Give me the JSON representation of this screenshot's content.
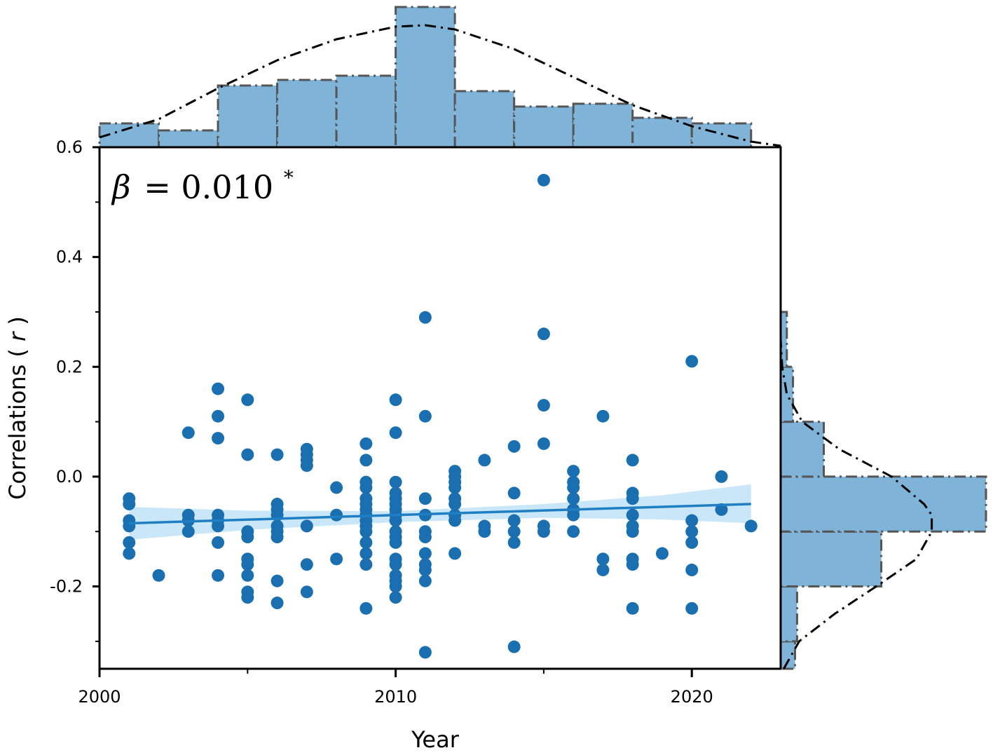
{
  "chart_data": {
    "type": "scatter",
    "xlabel": "Year",
    "ylabel_text": "Correlations (",
    "ylabel_italic": "r",
    "ylabel_close": ")",
    "annotation": {
      "beta_symbol": "β",
      "equals": "= ",
      "value": "0.010",
      "significance": "*"
    },
    "xlim": [
      2000,
      2023
    ],
    "ylim": [
      -0.35,
      0.6
    ],
    "xticks": [
      2000,
      2010,
      2020
    ],
    "xtick_labels": [
      "2000",
      "2010",
      "2020"
    ],
    "yticks": [
      -0.2,
      0.0,
      0.2,
      0.4,
      0.6
    ],
    "ytick_labels": [
      "-0.2",
      "0.0",
      "0.2",
      "0.4",
      "0.6"
    ],
    "grid": false,
    "colors": {
      "points": "#1a6fb0",
      "fit_line": "#1f7fc2",
      "confidence_band": "#bfe3f7",
      "histogram_fill": "#7fb3d8",
      "histogram_edge": "#555555",
      "density_curve": "#000000"
    },
    "points": [
      [
        2001,
        -0.04
      ],
      [
        2001,
        -0.05
      ],
      [
        2001,
        -0.08
      ],
      [
        2001,
        -0.09
      ],
      [
        2001,
        -0.12
      ],
      [
        2001,
        -0.14
      ],
      [
        2002,
        -0.18
      ],
      [
        2003,
        0.08
      ],
      [
        2003,
        -0.07
      ],
      [
        2003,
        -0.08
      ],
      [
        2003,
        -0.1
      ],
      [
        2004,
        0.16
      ],
      [
        2004,
        0.11
      ],
      [
        2004,
        0.07
      ],
      [
        2004,
        -0.07
      ],
      [
        2004,
        -0.08
      ],
      [
        2004,
        -0.09
      ],
      [
        2004,
        -0.12
      ],
      [
        2004,
        -0.18
      ],
      [
        2005,
        0.14
      ],
      [
        2005,
        0.04
      ],
      [
        2005,
        -0.1
      ],
      [
        2005,
        -0.11
      ],
      [
        2005,
        -0.15
      ],
      [
        2005,
        -0.16
      ],
      [
        2005,
        -0.18
      ],
      [
        2005,
        -0.21
      ],
      [
        2005,
        -0.22
      ],
      [
        2006,
        0.04
      ],
      [
        2006,
        -0.05
      ],
      [
        2006,
        -0.06
      ],
      [
        2006,
        -0.07
      ],
      [
        2006,
        -0.09
      ],
      [
        2006,
        -0.1
      ],
      [
        2006,
        -0.11
      ],
      [
        2006,
        -0.19
      ],
      [
        2006,
        -0.23
      ],
      [
        2007,
        0.05
      ],
      [
        2007,
        0.04
      ],
      [
        2007,
        0.03
      ],
      [
        2007,
        0.02
      ],
      [
        2007,
        -0.09
      ],
      [
        2007,
        -0.16
      ],
      [
        2007,
        -0.21
      ],
      [
        2008,
        -0.02
      ],
      [
        2008,
        -0.07
      ],
      [
        2008,
        -0.15
      ],
      [
        2009,
        0.06
      ],
      [
        2009,
        0.03
      ],
      [
        2009,
        -0.01
      ],
      [
        2009,
        -0.02
      ],
      [
        2009,
        -0.04
      ],
      [
        2009,
        -0.05
      ],
      [
        2009,
        -0.06
      ],
      [
        2009,
        -0.07
      ],
      [
        2009,
        -0.08
      ],
      [
        2009,
        -0.09
      ],
      [
        2009,
        -0.1
      ],
      [
        2009,
        -0.12
      ],
      [
        2009,
        -0.14
      ],
      [
        2009,
        -0.16
      ],
      [
        2009,
        -0.24
      ],
      [
        2010,
        0.14
      ],
      [
        2010,
        0.08
      ],
      [
        2010,
        -0.01
      ],
      [
        2010,
        -0.03
      ],
      [
        2010,
        -0.04
      ],
      [
        2010,
        -0.05
      ],
      [
        2010,
        -0.06
      ],
      [
        2010,
        -0.07
      ],
      [
        2010,
        -0.08
      ],
      [
        2010,
        -0.1
      ],
      [
        2010,
        -0.11
      ],
      [
        2010,
        -0.12
      ],
      [
        2010,
        -0.15
      ],
      [
        2010,
        -0.16
      ],
      [
        2010,
        -0.18
      ],
      [
        2010,
        -0.19
      ],
      [
        2010,
        -0.2
      ],
      [
        2010,
        -0.22
      ],
      [
        2011,
        0.29
      ],
      [
        2011,
        0.11
      ],
      [
        2011,
        -0.04
      ],
      [
        2011,
        -0.07
      ],
      [
        2011,
        -0.1
      ],
      [
        2011,
        -0.11
      ],
      [
        2011,
        -0.14
      ],
      [
        2011,
        -0.16
      ],
      [
        2011,
        -0.17
      ],
      [
        2011,
        -0.19
      ],
      [
        2011,
        -0.32
      ],
      [
        2012,
        0.01
      ],
      [
        2012,
        0.0
      ],
      [
        2012,
        -0.01
      ],
      [
        2012,
        -0.02
      ],
      [
        2012,
        -0.04
      ],
      [
        2012,
        -0.05
      ],
      [
        2012,
        -0.07
      ],
      [
        2012,
        -0.08
      ],
      [
        2012,
        -0.14
      ],
      [
        2013,
        0.03
      ],
      [
        2013,
        -0.09
      ],
      [
        2013,
        -0.1
      ],
      [
        2014,
        0.055
      ],
      [
        2014,
        -0.03
      ],
      [
        2014,
        -0.08
      ],
      [
        2014,
        -0.1
      ],
      [
        2014,
        -0.12
      ],
      [
        2014,
        -0.31
      ],
      [
        2015,
        0.54
      ],
      [
        2015,
        0.26
      ],
      [
        2015,
        0.13
      ],
      [
        2015,
        0.06
      ],
      [
        2015,
        -0.09
      ],
      [
        2015,
        -0.1
      ],
      [
        2016,
        0.01
      ],
      [
        2016,
        -0.01
      ],
      [
        2016,
        -0.02
      ],
      [
        2016,
        -0.04
      ],
      [
        2016,
        -0.06
      ],
      [
        2016,
        -0.07
      ],
      [
        2016,
        -0.1
      ],
      [
        2017,
        0.11
      ],
      [
        2017,
        -0.15
      ],
      [
        2017,
        -0.17
      ],
      [
        2018,
        0.03
      ],
      [
        2018,
        -0.03
      ],
      [
        2018,
        -0.04
      ],
      [
        2018,
        -0.07
      ],
      [
        2018,
        -0.09
      ],
      [
        2018,
        -0.1
      ],
      [
        2018,
        -0.15
      ],
      [
        2018,
        -0.16
      ],
      [
        2018,
        -0.24
      ],
      [
        2019,
        -0.14
      ],
      [
        2020,
        0.21
      ],
      [
        2020,
        -0.08
      ],
      [
        2020,
        -0.1
      ],
      [
        2020,
        -0.12
      ],
      [
        2020,
        -0.17
      ],
      [
        2020,
        -0.24
      ],
      [
        2021,
        0.0
      ],
      [
        2021,
        -0.06
      ],
      [
        2022,
        -0.09
      ]
    ],
    "fit_line": {
      "x": [
        2001,
        2022
      ],
      "y": [
        -0.085,
        -0.05
      ]
    },
    "confidence_band": {
      "x": [
        2001,
        2005,
        2010,
        2015,
        2019,
        2022
      ],
      "lower": [
        -0.115,
        -0.097,
        -0.083,
        -0.075,
        -0.078,
        -0.085
      ],
      "upper": [
        -0.055,
        -0.062,
        -0.063,
        -0.05,
        -0.034,
        -0.014
      ]
    },
    "histogram_x": {
      "bin_edges": [
        2000,
        2002,
        2004,
        2006,
        2008,
        2010,
        2012,
        2014,
        2016,
        2018,
        2020,
        2022
      ],
      "relative_heights": [
        0.17,
        0.12,
        0.44,
        0.48,
        0.51,
        1.0,
        0.4,
        0.29,
        0.31,
        0.21,
        0.17
      ],
      "density_curve": {
        "x": [
          2000,
          2002,
          2004,
          2006,
          2008,
          2010,
          2011,
          2012,
          2014,
          2016,
          2018,
          2020,
          2022,
          2023
        ],
        "y": [
          0.07,
          0.2,
          0.42,
          0.62,
          0.77,
          0.86,
          0.87,
          0.84,
          0.7,
          0.5,
          0.3,
          0.15,
          0.04,
          0.01
        ]
      }
    },
    "histogram_y": {
      "bin_edges": [
        -0.4,
        -0.3,
        -0.2,
        -0.1,
        0.0,
        0.1,
        0.2,
        0.3,
        0.4,
        0.5,
        0.6
      ],
      "relative_heights": [
        0.07,
        0.08,
        0.49,
        1.0,
        0.21,
        0.06,
        0.03,
        0.0,
        0.0,
        0.0
      ],
      "density_curve": {
        "y": [
          -0.35,
          -0.3,
          -0.25,
          -0.2,
          -0.15,
          -0.1,
          -0.07,
          -0.05,
          0.0,
          0.05,
          0.1,
          0.15,
          0.2,
          0.25
        ],
        "x": [
          0.02,
          0.12,
          0.35,
          0.62,
          0.88,
          0.98,
          0.98,
          0.93,
          0.72,
          0.38,
          0.14,
          0.04,
          0.01,
          0.0
        ]
      }
    }
  }
}
